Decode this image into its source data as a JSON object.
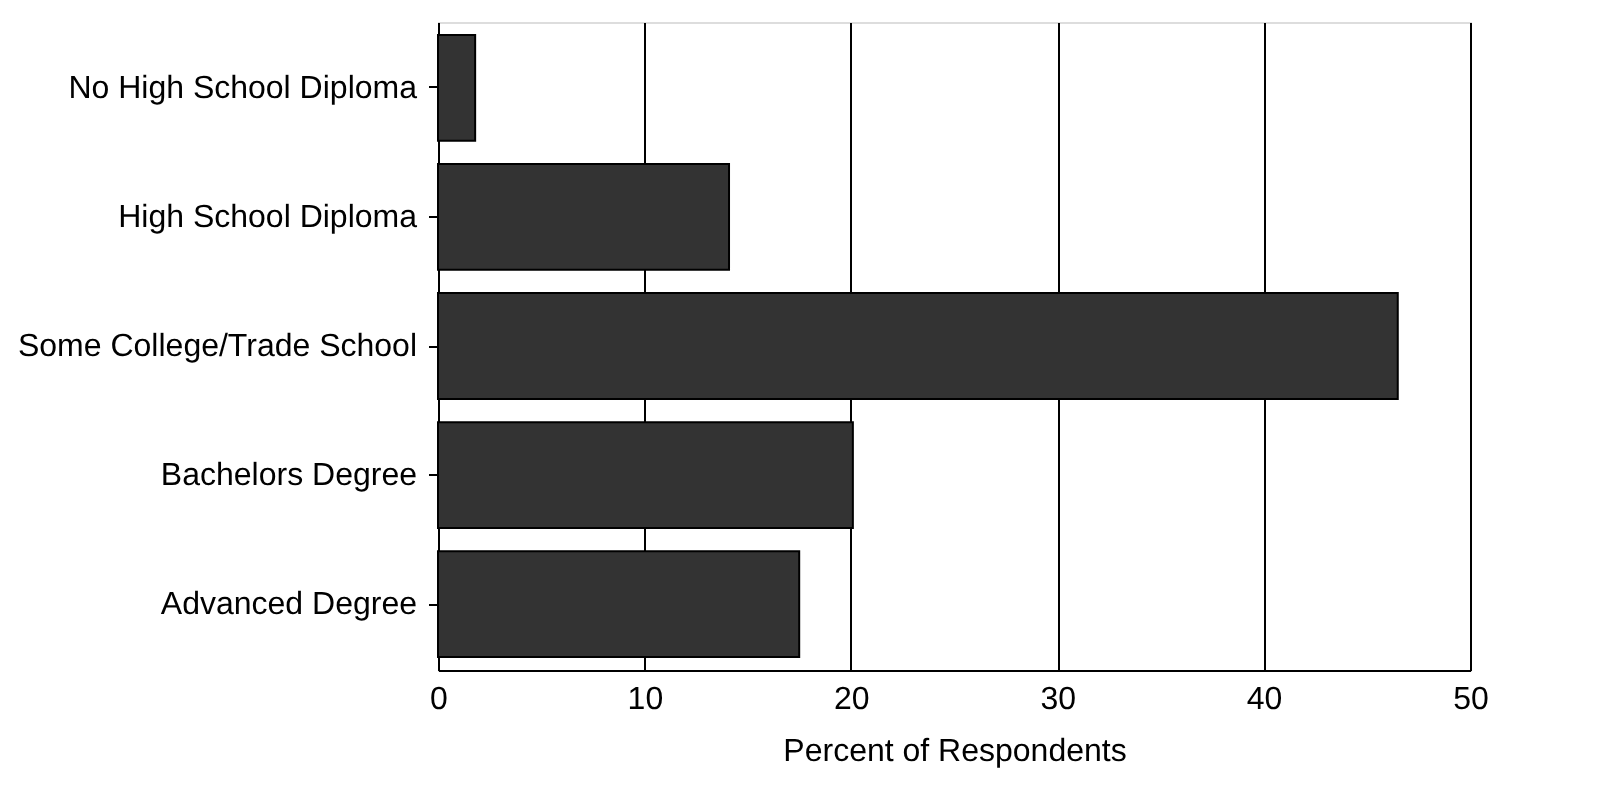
{
  "chart_data": {
    "type": "bar",
    "orientation": "horizontal",
    "xlabel": "Percent of Respondents",
    "categories": [
      "No High School Diploma",
      "High School Diploma",
      "Some College/Trade School",
      "Bachelors Degree",
      "Advanced Degree"
    ],
    "values": [
      1.8,
      14.1,
      46.5,
      20.1,
      17.5
    ],
    "color": "#333333",
    "xlim": [
      0,
      50
    ],
    "xticks": [
      0,
      10,
      20,
      30,
      40,
      50
    ],
    "grid": "x"
  }
}
